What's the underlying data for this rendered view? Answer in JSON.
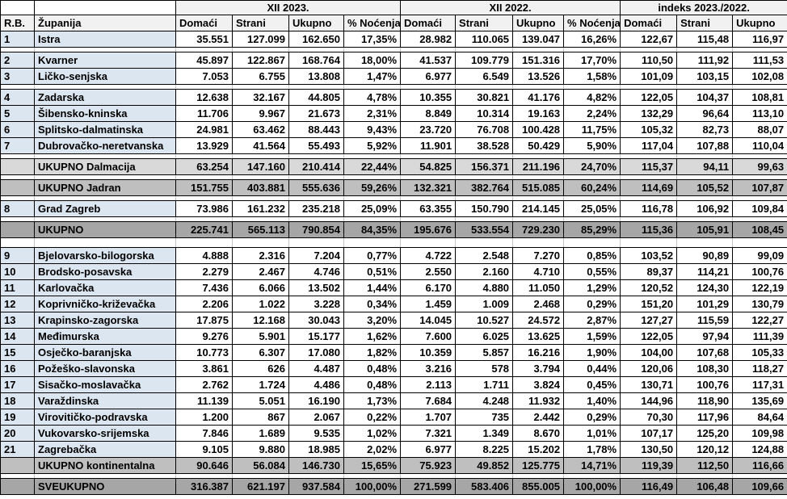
{
  "colors": {
    "county_label_fill": "#DCE6F1",
    "total_light_fill": "#D9D9D9",
    "total_mid_fill": "#BFBFBF",
    "total_dark_fill": "#A6A6A6",
    "header_fill": "#F1F1F1"
  },
  "table": {
    "header": {
      "rb": "R.B.",
      "zupanija": "Županija",
      "period_2023": "XII 2023.",
      "period_2022": "XII 2022.",
      "period_index": "indeks 2023./2022.",
      "sub": [
        "Domaći",
        "Strani",
        "Ukupno",
        "% Noćenja",
        "Domaći",
        "Strani",
        "Ukupno",
        "% Noćenja",
        "Domaći",
        "Strani",
        "Ukupno"
      ]
    },
    "rows": [
      {
        "type": "county",
        "rb": "1",
        "name": "Istra",
        "cells": [
          "35.551",
          "127.099",
          "162.650",
          "17,35%",
          "28.982",
          "110.065",
          "139.047",
          "16,26%",
          "122,67",
          "115,48",
          "116,97"
        ]
      },
      {
        "type": "spacer"
      },
      {
        "type": "county",
        "rb": "2",
        "name": "Kvarner",
        "cells": [
          "45.897",
          "122.867",
          "168.764",
          "18,00%",
          "41.537",
          "109.779",
          "151.316",
          "17,70%",
          "110,50",
          "111,92",
          "111,53"
        ]
      },
      {
        "type": "county",
        "rb": "3",
        "name": "Ličko-senjska",
        "cells": [
          "7.053",
          "6.755",
          "13.808",
          "1,47%",
          "6.977",
          "6.549",
          "13.526",
          "1,58%",
          "101,09",
          "103,15",
          "102,08"
        ]
      },
      {
        "type": "spacer"
      },
      {
        "type": "county",
        "rb": "4",
        "name": "Zadarska",
        "cells": [
          "12.638",
          "32.167",
          "44.805",
          "4,78%",
          "10.355",
          "30.821",
          "41.176",
          "4,82%",
          "122,05",
          "104,37",
          "108,81"
        ]
      },
      {
        "type": "county",
        "rb": "5",
        "name": "Šibensko-kninska",
        "cells": [
          "11.706",
          "9.967",
          "21.673",
          "2,31%",
          "8.849",
          "10.314",
          "19.163",
          "2,24%",
          "132,29",
          "96,64",
          "113,10"
        ]
      },
      {
        "type": "county",
        "rb": "6",
        "name": "Splitsko-dalmatinska",
        "cells": [
          "24.981",
          "63.462",
          "88.443",
          "9,43%",
          "23.720",
          "76.708",
          "100.428",
          "11,75%",
          "105,32",
          "82,73",
          "88,07"
        ]
      },
      {
        "type": "county",
        "rb": "7",
        "name": "Dubrovačko-neretvanska",
        "cells": [
          "13.929",
          "41.564",
          "55.493",
          "5,92%",
          "11.901",
          "38.528",
          "50.429",
          "5,90%",
          "117,04",
          "107,88",
          "110,04"
        ]
      },
      {
        "type": "spacer"
      },
      {
        "type": "total-light",
        "rb": "",
        "name": "UKUPNO Dalmacija",
        "cells": [
          "63.254",
          "147.160",
          "210.414",
          "22,44%",
          "54.825",
          "156.371",
          "211.196",
          "24,70%",
          "115,37",
          "94,11",
          "99,63"
        ]
      },
      {
        "type": "spacer"
      },
      {
        "type": "total-mid",
        "rb": "",
        "name": "UKUPNO Jadran",
        "cells": [
          "151.755",
          "403.881",
          "555.636",
          "59,26%",
          "132.321",
          "382.764",
          "515.085",
          "60,24%",
          "114,69",
          "105,52",
          "107,87"
        ]
      },
      {
        "type": "spacer"
      },
      {
        "type": "county",
        "rb": "8",
        "name": "Grad Zagreb",
        "cells": [
          "73.986",
          "161.232",
          "235.218",
          "25,09%",
          "63.355",
          "150.790",
          "214.145",
          "25,05%",
          "116,78",
          "106,92",
          "109,84"
        ]
      },
      {
        "type": "spacer"
      },
      {
        "type": "total-dark",
        "rb": "",
        "name": "UKUPNO",
        "cells": [
          "225.741",
          "565.113",
          "790.854",
          "84,35%",
          "195.676",
          "533.554",
          "729.230",
          "85,29%",
          "115,36",
          "105,91",
          "108,45"
        ]
      },
      {
        "type": "spacer-big"
      },
      {
        "type": "county",
        "rb": "9",
        "name": "Bjelovarsko-bilogorska",
        "cells": [
          "4.888",
          "2.316",
          "7.204",
          "0,77%",
          "4.722",
          "2.548",
          "7.270",
          "0,85%",
          "103,52",
          "90,89",
          "99,09"
        ]
      },
      {
        "type": "county",
        "rb": "10",
        "name": "Brodsko-posavska",
        "cells": [
          "2.279",
          "2.467",
          "4.746",
          "0,51%",
          "2.550",
          "2.160",
          "4.710",
          "0,55%",
          "89,37",
          "114,21",
          "100,76"
        ]
      },
      {
        "type": "county",
        "rb": "11",
        "name": "Karlovačka",
        "cells": [
          "7.436",
          "6.066",
          "13.502",
          "1,44%",
          "6.170",
          "4.880",
          "11.050",
          "1,29%",
          "120,52",
          "124,30",
          "122,19"
        ]
      },
      {
        "type": "county",
        "rb": "12",
        "name": "Koprivničko-križevačka",
        "cells": [
          "2.206",
          "1.022",
          "3.228",
          "0,34%",
          "1.459",
          "1.009",
          "2.468",
          "0,29%",
          "151,20",
          "101,29",
          "130,79"
        ]
      },
      {
        "type": "county",
        "rb": "13",
        "name": "Krapinsko-zagorska",
        "cells": [
          "17.875",
          "12.168",
          "30.043",
          "3,20%",
          "14.045",
          "10.527",
          "24.572",
          "2,87%",
          "127,27",
          "115,59",
          "122,27"
        ]
      },
      {
        "type": "county",
        "rb": "14",
        "name": "Međimurska",
        "cells": [
          "9.276",
          "5.901",
          "15.177",
          "1,62%",
          "7.600",
          "6.025",
          "13.625",
          "1,59%",
          "122,05",
          "97,94",
          "111,39"
        ]
      },
      {
        "type": "county",
        "rb": "15",
        "name": "Osječko-baranjska",
        "cells": [
          "10.773",
          "6.307",
          "17.080",
          "1,82%",
          "10.359",
          "5.857",
          "16.216",
          "1,90%",
          "104,00",
          "107,68",
          "105,33"
        ]
      },
      {
        "type": "county",
        "rb": "16",
        "name": "Požeško-slavonska",
        "cells": [
          "3.861",
          "626",
          "4.487",
          "0,48%",
          "3.216",
          "578",
          "3.794",
          "0,44%",
          "120,06",
          "108,30",
          "118,27"
        ]
      },
      {
        "type": "county",
        "rb": "17",
        "name": "Sisačko-moslavačka",
        "cells": [
          "2.762",
          "1.724",
          "4.486",
          "0,48%",
          "2.113",
          "1.711",
          "3.824",
          "0,45%",
          "130,71",
          "100,76",
          "117,31"
        ]
      },
      {
        "type": "county",
        "rb": "18",
        "name": "Varaždinska",
        "cells": [
          "11.139",
          "5.051",
          "16.190",
          "1,73%",
          "7.684",
          "4.248",
          "11.932",
          "1,40%",
          "144,96",
          "118,90",
          "135,69"
        ]
      },
      {
        "type": "county",
        "rb": "19",
        "name": "Virovitičko-podravska",
        "cells": [
          "1.200",
          "867",
          "2.067",
          "0,22%",
          "1.707",
          "735",
          "2.442",
          "0,29%",
          "70,30",
          "117,96",
          "84,64"
        ]
      },
      {
        "type": "county",
        "rb": "20",
        "name": "Vukovarsko-srijemska",
        "cells": [
          "7.846",
          "1.689",
          "9.535",
          "1,02%",
          "7.321",
          "1.349",
          "8.670",
          "1,01%",
          "107,17",
          "125,20",
          "109,98"
        ]
      },
      {
        "type": "county",
        "rb": "21",
        "name": "Zagrebačka",
        "cells": [
          "9.105",
          "9.880",
          "18.985",
          "2,02%",
          "6.977",
          "8.225",
          "15.202",
          "1,78%",
          "130,50",
          "120,12",
          "124,88"
        ]
      },
      {
        "type": "total-mid",
        "rb": "",
        "name": "UKUPNO kontinentalna",
        "cells": [
          "90.646",
          "56.084",
          "146.730",
          "15,65%",
          "75.923",
          "49.852",
          "125.775",
          "14,71%",
          "119,39",
          "112,50",
          "116,66"
        ]
      },
      {
        "type": "spacer"
      },
      {
        "type": "total-dark",
        "rb": "",
        "name": "SVEUKUPNO",
        "cells": [
          "316.387",
          "621.197",
          "937.584",
          "100,00%",
          "271.599",
          "583.406",
          "855.005",
          "100,00%",
          "116,49",
          "106,48",
          "109,66"
        ]
      }
    ]
  }
}
